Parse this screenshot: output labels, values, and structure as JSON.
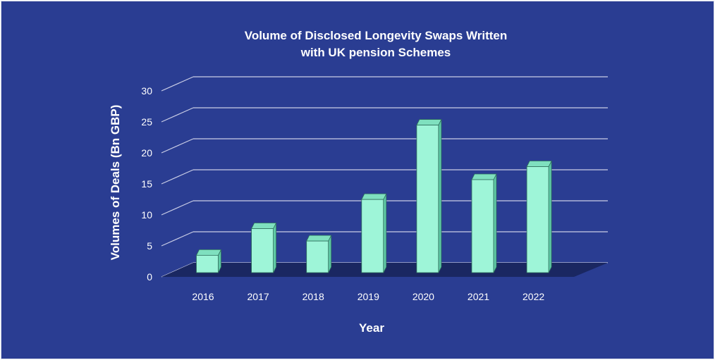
{
  "chart_data": {
    "type": "bar",
    "title": [
      "Volume of Disclosed Longevity Swaps Written",
      "with UK pension Schemes"
    ],
    "xlabel": "Year",
    "ylabel": "Volumes of Deals (Bn GBP)",
    "categories": [
      "2016",
      "2017",
      "2018",
      "2019",
      "2020",
      "2021",
      "2022"
    ],
    "values": [
      2.8,
      7.1,
      5.1,
      11.8,
      23.8,
      15.0,
      17.1
    ],
    "ylim": [
      0,
      30
    ],
    "yticks": [
      "0",
      "5",
      "10",
      "15",
      "20",
      "25",
      "30"
    ],
    "grid": true,
    "legend": "none"
  },
  "colors": {
    "background": "#2a3d92",
    "bar_front": "#9ef5d8",
    "bar_side": "#5fc9a6",
    "bar_top": "#7fe0bf",
    "bar_outline": "#2e6f5c",
    "floor": "#1a2761",
    "grid": "#c9cde6",
    "text": "#ffffff"
  }
}
